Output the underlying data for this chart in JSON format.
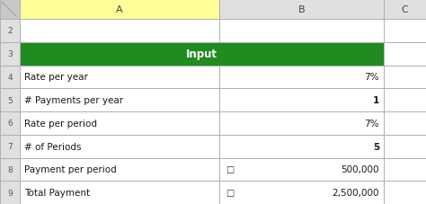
{
  "rows": [
    {
      "row_num": "2",
      "col_a": "",
      "col_b": "",
      "bold_b": false,
      "empty": true
    },
    {
      "row_num": "3",
      "col_a": "Input",
      "col_b": "",
      "bold_b": false,
      "header": true
    },
    {
      "row_num": "4",
      "col_a": "Rate per year",
      "col_b": "7%",
      "bold_b": false
    },
    {
      "row_num": "5",
      "col_a": "# Payments per year",
      "col_b": "1",
      "bold_b": true
    },
    {
      "row_num": "6",
      "col_a": "Rate per period",
      "col_b": "7%",
      "bold_b": false
    },
    {
      "row_num": "7",
      "col_a": "# of Periods",
      "col_b": "5",
      "bold_b": true
    },
    {
      "row_num": "8",
      "col_a": "Payment per period",
      "col_b": "500,000",
      "bold_b": false,
      "currency": true
    },
    {
      "row_num": "9",
      "col_a": "Total Payment",
      "col_b": "2,500,000",
      "bold_b": false,
      "currency": true
    }
  ],
  "header_bg": "#218A21",
  "header_text_color": "#FFFFFF",
  "col_header_bg": "#FFFF99",
  "col_header_bg_gray": "#E0E0E0",
  "grid_color": "#B0B0B0",
  "cell_bg": "#FFFFFF",
  "row_num_bg": "#E0E0E0",
  "row_num_color": "#555555",
  "text_color": "#1A1A1A",
  "col_a_label": "A",
  "col_b_label": "B",
  "col_c_label": "C",
  "fig_bg": "#C8C8C8",
  "corner_bg": "#C8C8C8",
  "currency_symbol": "□"
}
